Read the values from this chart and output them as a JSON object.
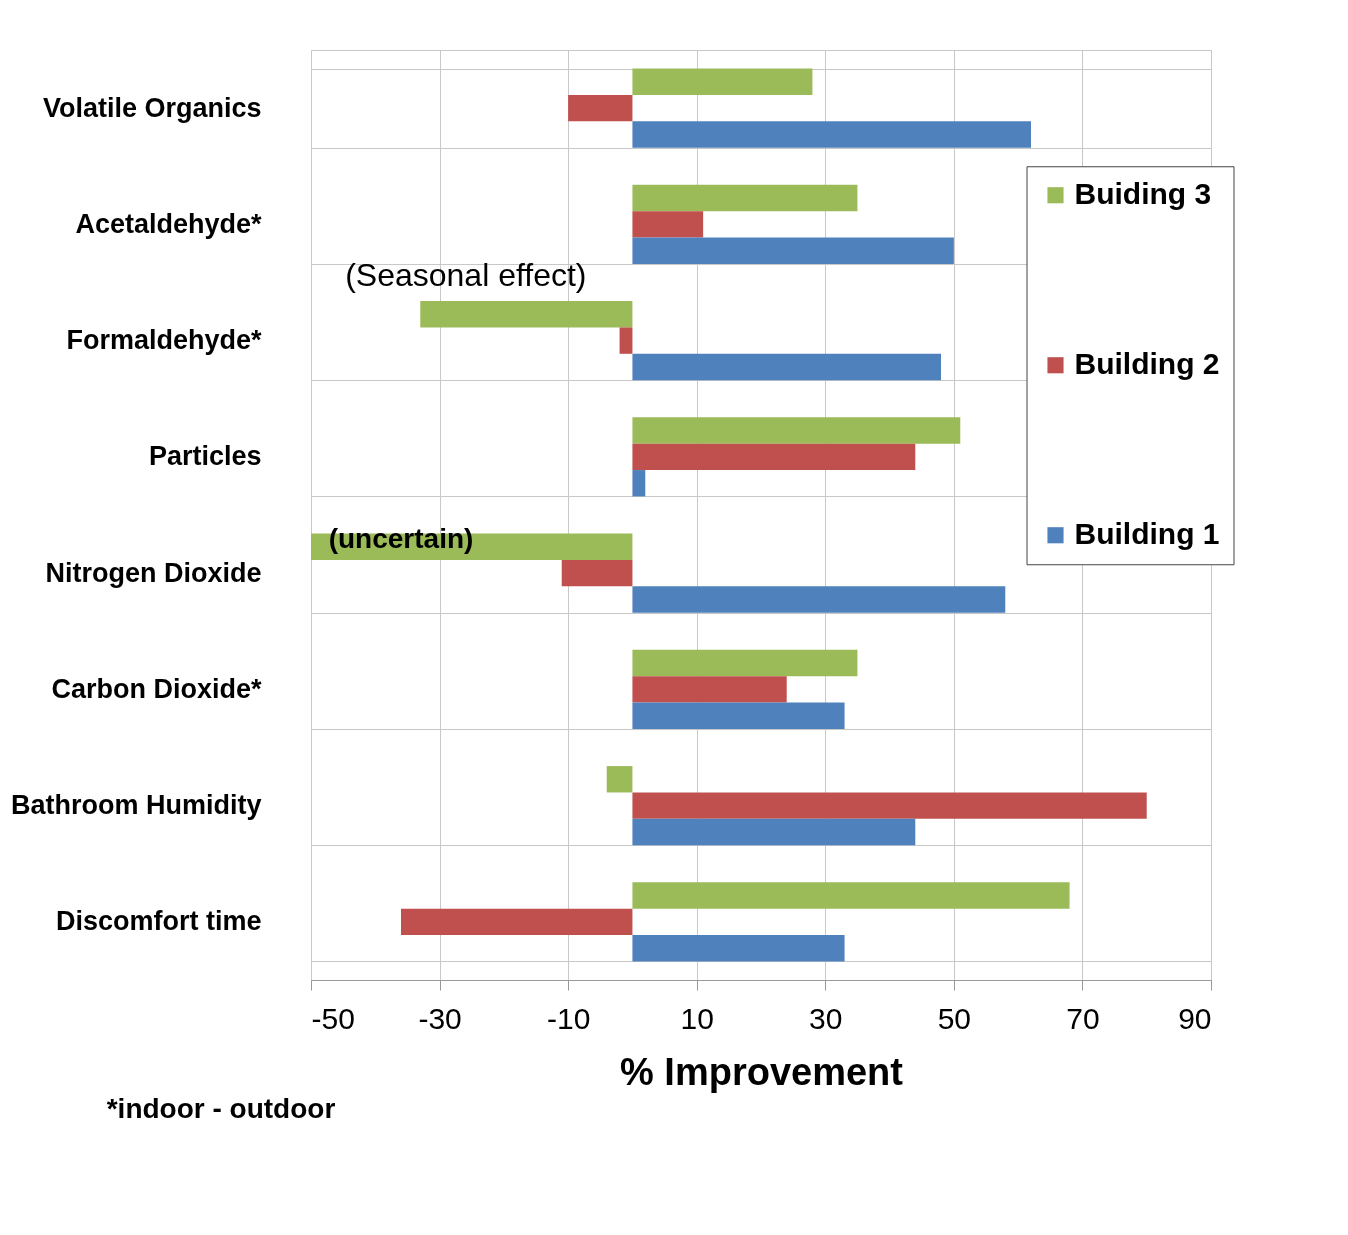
{
  "chart_data": {
    "type": "bar",
    "orientation": "horizontal",
    "xlabel": "% Improvement",
    "categories": [
      "Volatile Organics",
      "Acetaldehyde*",
      "Formaldehyde*",
      "Particles",
      "Nitrogen Dioxide",
      "Carbon Dioxide*",
      "Bathroom Humidity",
      "Discomfort time"
    ],
    "series": [
      {
        "name": "Buiding 3",
        "color": "#9bbb59",
        "values": [
          28,
          35,
          -33,
          51,
          -50,
          35,
          -4,
          68
        ]
      },
      {
        "name": "Building 2",
        "color": "#c0504d",
        "values": [
          -10,
          11,
          -2,
          44,
          -11,
          24,
          80,
          -36
        ]
      },
      {
        "name": "Building 1",
        "color": "#4f81bd",
        "values": [
          62,
          50,
          48,
          2,
          58,
          33,
          44,
          33
        ]
      }
    ],
    "xlim": [
      -50,
      90
    ],
    "xticks": [
      -50,
      -30,
      -10,
      10,
      30,
      50,
      70,
      90
    ],
    "grid": true,
    "legend": "top right",
    "annotations": [
      "(Seasonal effect)",
      "(uncertain)",
      "*indoor - outdoor"
    ]
  }
}
